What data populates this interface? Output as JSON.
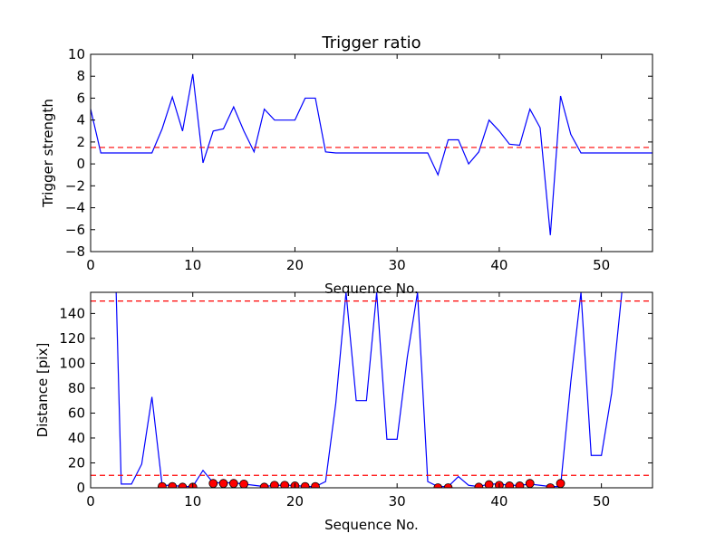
{
  "chart_data": [
    {
      "type": "line",
      "title": "Trigger ratio",
      "xlabel": "Sequence No.",
      "ylabel": "Trigger strength",
      "xlim": [
        0,
        55
      ],
      "ylim": [
        -8,
        10
      ],
      "xticks": [
        0,
        10,
        20,
        30,
        40,
        50
      ],
      "yticks": [
        -8,
        -6,
        -4,
        -2,
        0,
        2,
        4,
        6,
        8,
        10
      ],
      "xtick_labels": [
        "0",
        "10",
        "20",
        "30",
        "40",
        "50"
      ],
      "ytick_labels": [
        "−8",
        "−6",
        "−4",
        "−2",
        "0",
        "2",
        "4",
        "6",
        "8",
        "10"
      ],
      "grid": false,
      "series": [
        {
          "color": "#0000ff",
          "x": [
            0,
            1,
            2,
            3,
            4,
            5,
            6,
            7,
            8,
            9,
            10,
            11,
            12,
            13,
            14,
            15,
            16,
            17,
            18,
            19,
            20,
            21,
            22,
            23,
            24,
            25,
            26,
            27,
            28,
            29,
            30,
            31,
            32,
            33,
            34,
            35,
            36,
            37,
            38,
            39,
            40,
            41,
            42,
            43,
            44,
            45,
            46,
            47,
            48,
            49,
            50,
            51,
            52,
            53,
            54,
            55
          ],
          "y": [
            5.0,
            1.0,
            1.0,
            1.0,
            1.0,
            1.0,
            1.0,
            3.2,
            6.1,
            3.0,
            8.2,
            0.1,
            3.0,
            3.2,
            5.2,
            3.0,
            1.1,
            5.0,
            4.0,
            4.0,
            4.0,
            6.0,
            6.0,
            1.1,
            1.0,
            1.0,
            1.0,
            1.0,
            1.0,
            1.0,
            1.0,
            1.0,
            1.0,
            1.0,
            -1.0,
            2.2,
            2.2,
            0.0,
            1.1,
            4.0,
            3.0,
            1.8,
            1.7,
            5.0,
            3.3,
            -6.5,
            6.2,
            2.7,
            1.0,
            1.0,
            1.0,
            1.0,
            1.0,
            1.0,
            1.0,
            1.0
          ]
        }
      ],
      "hlines": [
        {
          "y": 1.5,
          "color": "#ff0000",
          "style": "dashed"
        }
      ]
    },
    {
      "type": "line",
      "title": "",
      "xlabel": "Sequence No.",
      "ylabel": "Distance [pix]",
      "xlim": [
        0,
        55
      ],
      "ylim": [
        0,
        157
      ],
      "xticks": [
        0,
        10,
        20,
        30,
        40,
        50
      ],
      "yticks": [
        0,
        20,
        40,
        60,
        80,
        100,
        120,
        140
      ],
      "xtick_labels": [
        "0",
        "10",
        "20",
        "30",
        "40",
        "50"
      ],
      "ytick_labels": [
        "0",
        "20",
        "40",
        "60",
        "80",
        "100",
        "120",
        "140"
      ],
      "grid": false,
      "series": [
        {
          "color": "#0000ff",
          "x": [
            2.5,
            3,
            4,
            5,
            6,
            7,
            8,
            9,
            10,
            11,
            12,
            13,
            14,
            15,
            16,
            17,
            18,
            19,
            20,
            21,
            22,
            23,
            24,
            25,
            26,
            27,
            28,
            29,
            30,
            31,
            32,
            33,
            34,
            35,
            36,
            37,
            38,
            39,
            40,
            41,
            42,
            43,
            44,
            45,
            46,
            47,
            48,
            49,
            50,
            51,
            52
          ],
          "y": [
            157,
            3,
            3,
            19,
            73,
            2,
            2,
            1,
            1,
            14,
            4,
            4,
            4,
            3,
            2,
            1,
            2,
            2,
            2,
            1,
            1,
            5,
            68,
            157,
            70,
            70,
            157,
            39,
            39,
            105,
            157,
            5,
            1,
            1,
            9,
            2,
            1,
            3,
            3,
            2,
            2,
            3,
            2,
            1,
            1,
            85,
            157,
            26,
            26,
            76,
            157
          ]
        }
      ],
      "markers": {
        "color": "#ff0000",
        "x": [
          7,
          8,
          9,
          10,
          12,
          13,
          14,
          15,
          17,
          18,
          19,
          20,
          21,
          22,
          34,
          35,
          38,
          39,
          40,
          41,
          42,
          43,
          45,
          46
        ],
        "y": [
          1,
          1,
          0.5,
          0.5,
          3.5,
          3.5,
          3.5,
          3,
          0.5,
          2,
          2,
          1.5,
          1,
          1,
          0,
          0,
          0.5,
          2.5,
          2,
          1.5,
          1.5,
          3.5,
          0,
          3.5
        ]
      },
      "hlines": [
        {
          "y": 150,
          "color": "#ff0000",
          "style": "dashed"
        },
        {
          "y": 10,
          "color": "#ff0000",
          "style": "dashed"
        }
      ]
    }
  ]
}
